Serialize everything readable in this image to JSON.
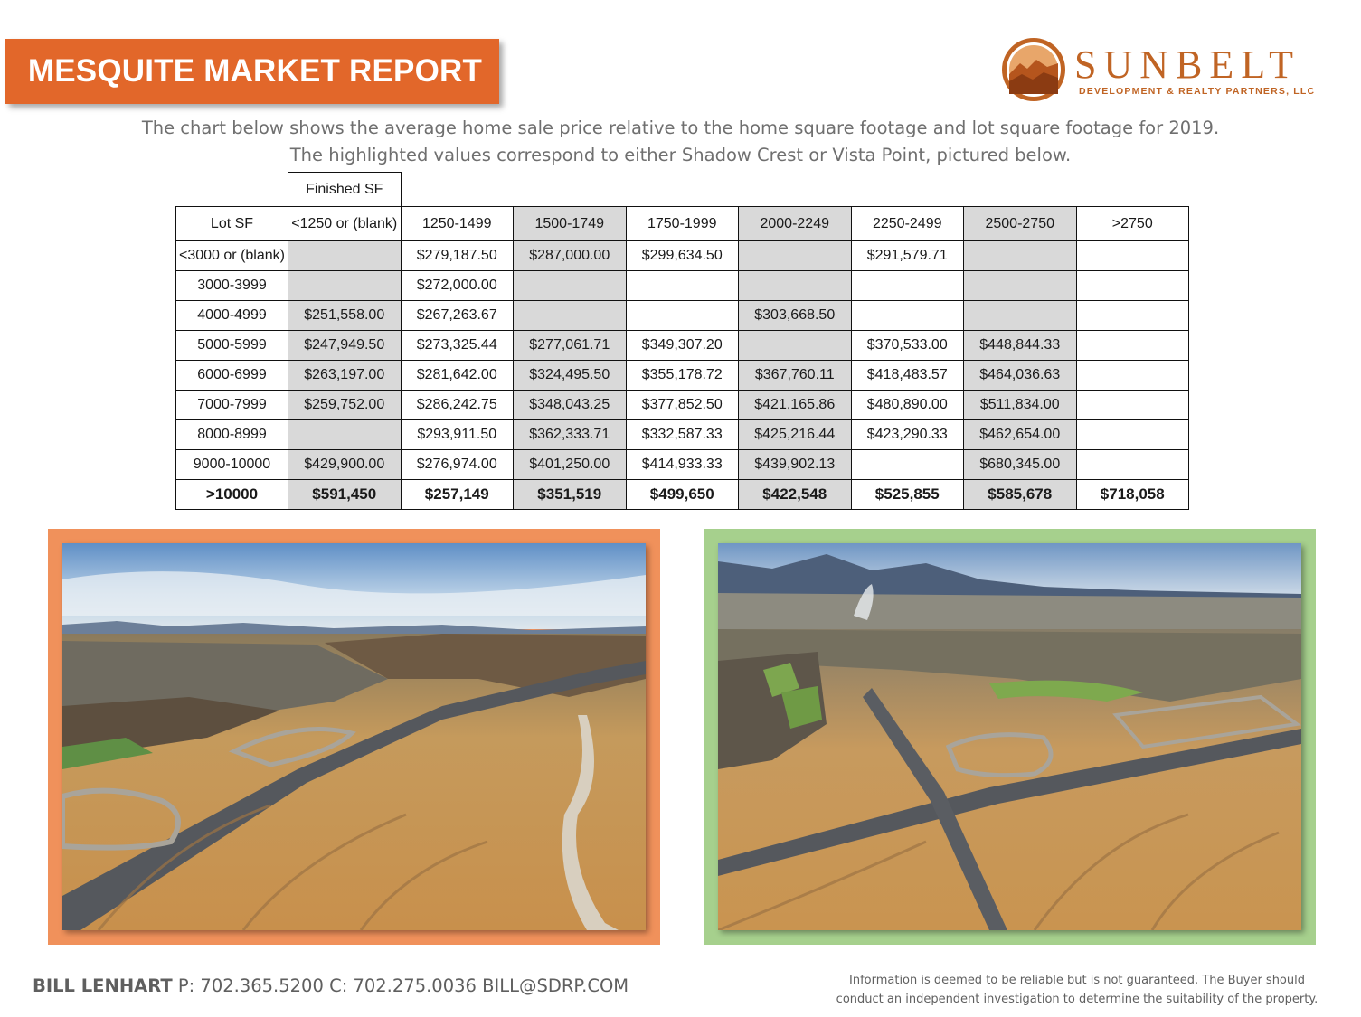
{
  "header": {
    "title": "MESQUITE MARKET REPORT",
    "logo_name": "SUNBELT",
    "logo_tagline": "DEVELOPMENT & REALTY PARTNERS, LLC"
  },
  "description": {
    "line1": "The chart below shows the average home sale price relative to the home square footage and lot square footage for 2019.",
    "line2": "The highlighted values correspond to either Shadow Crest or Vista Point, pictured below."
  },
  "table": {
    "top_header": "Finished SF",
    "corner_label": "Lot SF",
    "columns": [
      "<1250 or (blank)",
      "1250-1499",
      "1500-1749",
      "1750-1999",
      "2000-2249",
      "2250-2499",
      "2500-2750",
      ">2750"
    ],
    "rows": [
      {
        "label": "<3000 or (blank)",
        "values": [
          "",
          "$279,187.50",
          "$287,000.00",
          "$299,634.50",
          "",
          "$291,579.71",
          "",
          ""
        ]
      },
      {
        "label": "3000-3999",
        "values": [
          "",
          "$272,000.00",
          "",
          "",
          "",
          "",
          "",
          ""
        ]
      },
      {
        "label": "4000-4999",
        "values": [
          "$251,558.00",
          "$267,263.67",
          "",
          "",
          "$303,668.50",
          "",
          "",
          ""
        ]
      },
      {
        "label": "5000-5999",
        "values": [
          "$247,949.50",
          "$273,325.44",
          "$277,061.71",
          "$349,307.20",
          "",
          "$370,533.00",
          "$448,844.33",
          ""
        ]
      },
      {
        "label": "6000-6999",
        "values": [
          "$263,197.00",
          "$281,642.00",
          "$324,495.50",
          "$355,178.72",
          "$367,760.11",
          "$418,483.57",
          "$464,036.63",
          ""
        ]
      },
      {
        "label": "7000-7999",
        "values": [
          "$259,752.00",
          "$286,242.75",
          "$348,043.25",
          "$377,852.50",
          "$421,165.86",
          "$480,890.00",
          "$511,834.00",
          ""
        ]
      },
      {
        "label": "8000-8999",
        "values": [
          "",
          "$293,911.50",
          "$362,333.71",
          "$332,587.33",
          "$425,216.44",
          "$423,290.33",
          "$462,654.00",
          ""
        ]
      },
      {
        "label": "9000-10000",
        "values": [
          "$429,900.00",
          "$276,974.00",
          "$401,250.00",
          "$414,933.33",
          "$439,902.13",
          "",
          "$680,345.00",
          ""
        ]
      },
      {
        "label": ">10000",
        "values": [
          "$591,450",
          "$257,149",
          "$351,519",
          "$499,650",
          "$422,548",
          "$525,855",
          "$585,678",
          "$718,058"
        ]
      }
    ]
  },
  "footer": {
    "name": "BILL LENHART",
    "contact": " P: 702.365.5200  C: 702.275.0036  BILL@SDRP.COM",
    "disclaimer_line1": "Information is deemed to be reliable but is not guaranteed.  The Buyer should",
    "disclaimer_line2": "conduct an independent investigation to determine the suitability of the property."
  },
  "colors": {
    "banner": "#e2672a",
    "brand": "#c06424",
    "orange_frame": "#f0915b",
    "green_frame": "#a6d08d",
    "shaded_cell": "#d9d9d9"
  }
}
